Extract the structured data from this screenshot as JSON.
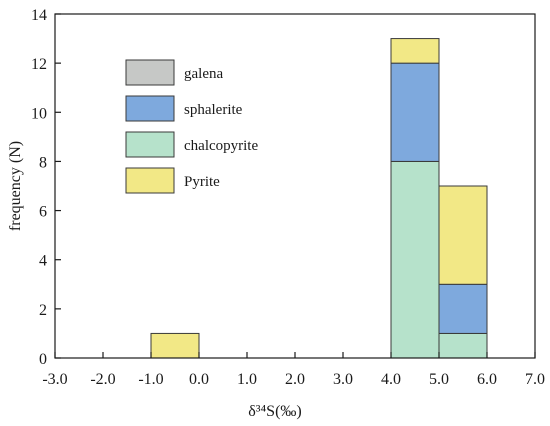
{
  "chart_data": {
    "type": "bar",
    "subtype": "stacked-histogram",
    "xlabel": "δ³⁴S(‰)",
    "ylabel": "frequency (N)",
    "xlim": [
      -3.0,
      7.0
    ],
    "ylim": [
      0,
      14
    ],
    "x_ticks": [
      "-3.0",
      "-2.0",
      "-1.0",
      "0.0",
      "1.0",
      "2.0",
      "3.0",
      "4.0",
      "5.0",
      "6.0",
      "7.0"
    ],
    "y_ticks": [
      "0",
      "2",
      "4",
      "6",
      "8",
      "10",
      "12",
      "14"
    ],
    "grid": false,
    "legend_position": "top-left",
    "bins": [
      {
        "from": -1.0,
        "to": 0.0
      },
      {
        "from": 4.0,
        "to": 5.0
      },
      {
        "from": 5.0,
        "to": 6.0
      }
    ],
    "series": [
      {
        "name": "galena",
        "color": "#c6c8c6",
        "values": [
          0,
          0,
          0
        ]
      },
      {
        "name": "sphalerite",
        "color": "#7ea9dd",
        "values": [
          0,
          4,
          2
        ]
      },
      {
        "name": "chalcopyrite",
        "color": "#b6e2cb",
        "values": [
          0,
          8,
          1
        ]
      },
      {
        "name": "Pyrite",
        "color": "#f2e886",
        "values": [
          1,
          1,
          4
        ]
      }
    ],
    "stack_order": [
      "chalcopyrite",
      "sphalerite",
      "galena",
      "Pyrite"
    ]
  }
}
